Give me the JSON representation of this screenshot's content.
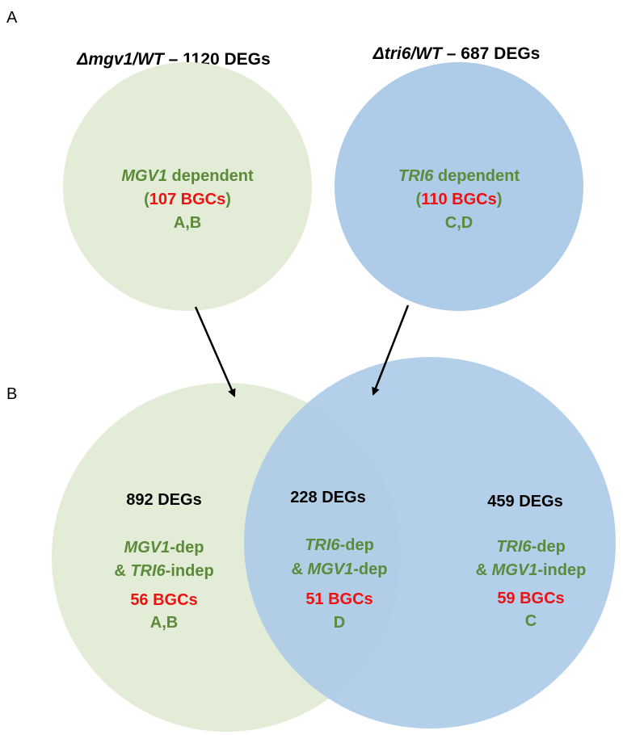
{
  "panel_a": {
    "letter": "A",
    "left_header": {
      "genotype": "Δmgv1/WT",
      "dash": " – ",
      "count": "1120 DEGs"
    },
    "right_header": {
      "genotype": "Δtri6/WT",
      "dash": " – ",
      "count": "687 DEGs"
    },
    "left_circle": {
      "gene": "MGV1",
      "word": " dependent",
      "open": "(",
      "bgcs": "107 BGCs",
      "close": ")",
      "letters": "A,B"
    },
    "right_circle": {
      "gene": "TRI6",
      "word": " dependent",
      "open": "(",
      "bgcs": "110 BGCs",
      "close": ")",
      "letters": "C,D"
    }
  },
  "panel_b": {
    "letter": "B",
    "left_region": {
      "degs": "892 DEGs",
      "gene1": "MGV1",
      "suffix1": "-dep",
      "amp": "& ",
      "gene2": "TRI6",
      "suffix2": "-indep",
      "bgcs": "56 BGCs",
      "letters": "A,B"
    },
    "middle_region": {
      "degs": "228 DEGs",
      "gene1": "TRI6",
      "suffix1": "-dep",
      "amp": "& ",
      "gene2": "MGV1",
      "suffix2": "-dep",
      "bgcs": "51 BGCs",
      "letters": "D"
    },
    "right_region": {
      "degs": "459 DEGs",
      "gene1": "TRI6",
      "suffix1": "-dep",
      "amp": "& ",
      "gene2": "MGV1",
      "suffix2": "-indep",
      "bgcs": "59 BGCs",
      "letters": "C"
    }
  },
  "colors": {
    "green_circle": "#e2ecd6",
    "blue_circle": "#aecbe8",
    "label_green": "#5b8a3a",
    "label_red": "#ee1111"
  }
}
